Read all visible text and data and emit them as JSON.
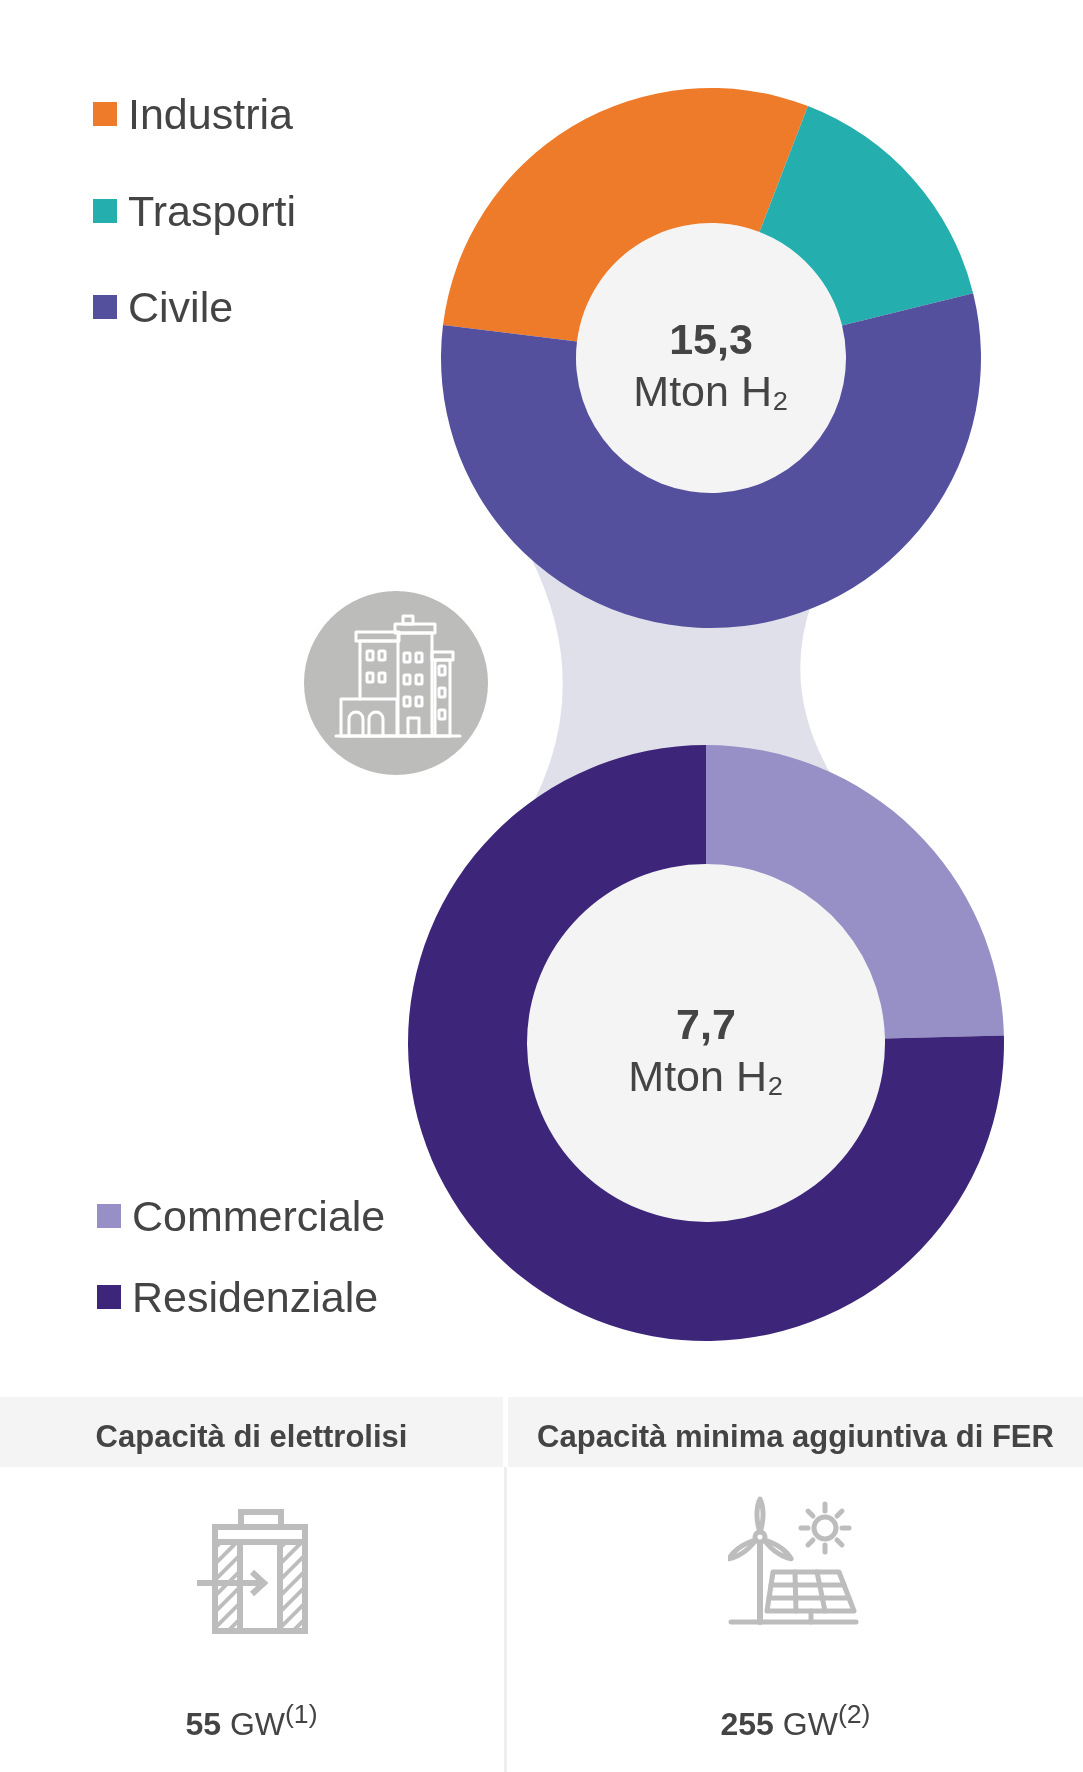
{
  "chart_data": [
    {
      "type": "donut",
      "categories": [
        "Industria",
        "Trasporti",
        "Civile"
      ],
      "values": [
        28.9,
        15.3,
        55.8
      ],
      "colors": [
        "#ee7b2a",
        "#24aeae",
        "#54509d"
      ],
      "legend": "top left",
      "annotations": [
        "15,3",
        "Mton H₂"
      ]
    },
    {
      "type": "donut",
      "categories": [
        "Commerciale",
        "Residenziale"
      ],
      "values": [
        24.6,
        75.4
      ],
      "colors": [
        "#9690c6",
        "#3d2679"
      ],
      "legend": "bottom left",
      "annotations": [
        "7,7",
        "Mton H₂"
      ]
    },
    {
      "type": "other",
      "categories": [
        "Capacità di elettrolisi",
        "Capacità minima aggiuntiva di FER"
      ],
      "value_labels": [
        "55 GW$^{(1)}$",
        "255 GW$^{(2)}$"
      ]
    }
  ]
}
